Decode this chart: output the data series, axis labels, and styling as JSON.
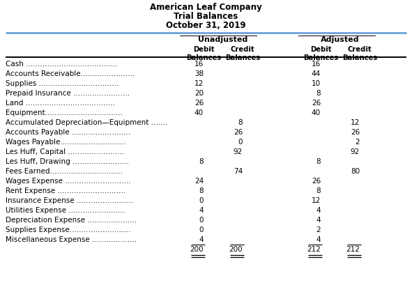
{
  "title_line1": "American Leaf Company",
  "title_line2": "Trial Balances",
  "title_line3": "October 31, 2019",
  "account_names": [
    "Cash .......................................",
    "Accounts Receivable.......................",
    "Supplies ..................................",
    "Prepaid Insurance ........................",
    "Land ......................................",
    "Equipment.................................",
    "Accumulated Depreciation—Equipment .......",
    "Accounts Payable .........................",
    "Wages Payable............................",
    "Les Huff, Capital ........................",
    "Les Huff, Drawing ........................",
    "Fees Earned...............................",
    "Wages Expense ............................",
    "Rent Expense .............................",
    "Insurance Expense ........................",
    "Utilities Expense ........................",
    "Depreciation Expense .....................",
    "Supplies Expense..........................",
    "Miscellaneous Expense ..................."
  ],
  "unadj_debit": [
    "16",
    "38",
    "12",
    "20",
    "26",
    "40",
    "",
    "",
    "",
    "",
    "8",
    "",
    "24",
    "8",
    "0",
    "4",
    "0",
    "0",
    "4"
  ],
  "unadj_credit": [
    "",
    "",
    "",
    "",
    "",
    "",
    "8",
    "26",
    "0",
    "92",
    "",
    "74",
    "",
    "",
    "",
    "",
    "",
    "",
    ""
  ],
  "adj_debit": [
    "16",
    "44",
    "10",
    "8",
    "26",
    "40",
    "",
    "",
    "",
    "",
    "8",
    "",
    "26",
    "8",
    "12",
    "4",
    "4",
    "2",
    "4"
  ],
  "adj_credit": [
    "",
    "",
    "",
    "",
    "",
    "",
    "12",
    "26",
    "2",
    "92",
    "",
    "80",
    "",
    "",
    "",
    "",
    "",
    "",
    ""
  ],
  "totals": [
    "200",
    "200",
    "212",
    "212"
  ],
  "bg_color": "#ffffff",
  "cyan_color": "#5b9bd5"
}
